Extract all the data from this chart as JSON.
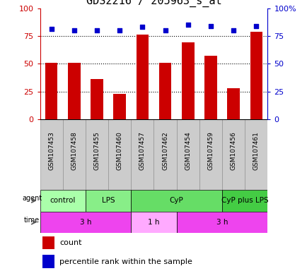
{
  "title": "GDS2216 / 205963_s_at",
  "samples": [
    "GSM107453",
    "GSM107458",
    "GSM107455",
    "GSM107460",
    "GSM107457",
    "GSM107462",
    "GSM107454",
    "GSM107459",
    "GSM107456",
    "GSM107461"
  ],
  "counts": [
    51,
    51,
    36,
    23,
    76,
    51,
    69,
    57,
    28,
    79
  ],
  "percentiles": [
    81,
    80,
    80,
    80,
    83,
    80,
    85,
    84,
    80,
    84
  ],
  "ylim_left": [
    0,
    100
  ],
  "ylim_right": [
    0,
    100
  ],
  "bar_color": "#cc0000",
  "dot_color": "#0000cc",
  "grid_levels": [
    25,
    50,
    75
  ],
  "agent_groups": [
    {
      "label": "control",
      "start": 0,
      "end": 2,
      "color": "#aaffaa"
    },
    {
      "label": "LPS",
      "start": 2,
      "end": 4,
      "color": "#88ee88"
    },
    {
      "label": "CyP",
      "start": 4,
      "end": 8,
      "color": "#66dd66"
    },
    {
      "label": "CyP plus LPS",
      "start": 8,
      "end": 10,
      "color": "#44cc44"
    }
  ],
  "time_groups": [
    {
      "label": "3 h",
      "start": 0,
      "end": 4,
      "color": "#ee44ee"
    },
    {
      "label": "1 h",
      "start": 4,
      "end": 6,
      "color": "#ffaaff"
    },
    {
      "label": "3 h",
      "start": 6,
      "end": 10,
      "color": "#ee44ee"
    }
  ],
  "agent_label_color": "#000000",
  "time_label_color": "#000000",
  "left_axis_color": "#cc0000",
  "right_axis_color": "#0000cc",
  "background_color": "#ffffff",
  "plot_bg_color": "#ffffff",
  "tick_label_bg": "#cccccc",
  "label_fontsize": 6.5,
  "agent_fontsize": 8,
  "time_fontsize": 8,
  "legend_fontsize": 8,
  "title_fontsize": 11
}
